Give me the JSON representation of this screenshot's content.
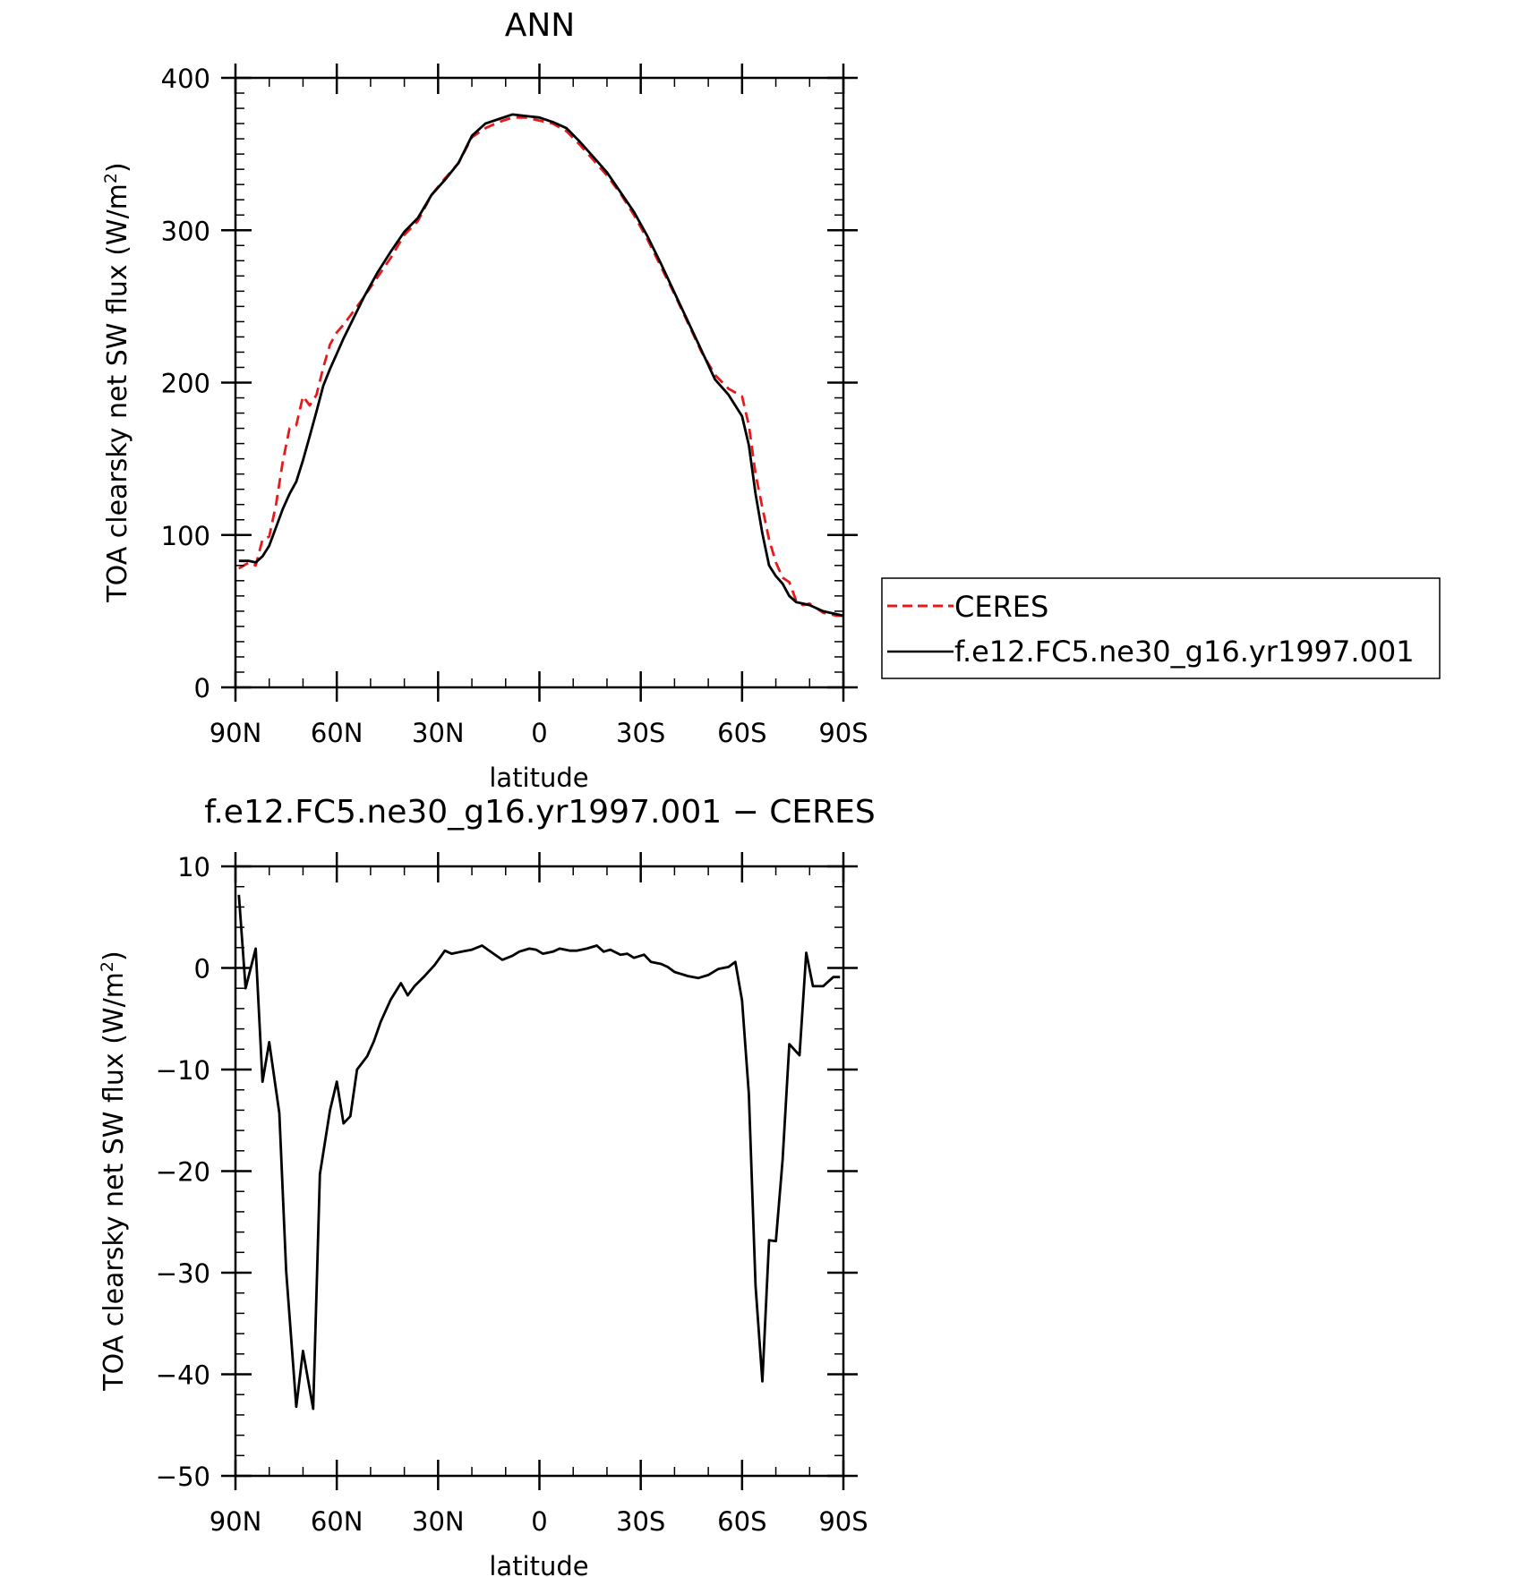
{
  "chart_data": [
    {
      "type": "line",
      "title": "ANN",
      "xlabel": "latitude",
      "ylabel": "TOA clearsky net SW flux (W/m²)",
      "ylabel_base": "TOA clearsky net SW flux (W/m",
      "ylabel_sup": "2",
      "ylabel_close": ")",
      "xlim": [
        90,
        -90
      ],
      "ylim": [
        0,
        400
      ],
      "xticks": [
        90,
        60,
        30,
        0,
        -30,
        -60,
        -90
      ],
      "xtick_labels": [
        "90N",
        "60N",
        "30N",
        "0",
        "30S",
        "60S",
        "90S"
      ],
      "yticks": [
        0,
        100,
        200,
        300,
        400
      ],
      "ytick_labels": [
        "0",
        "100",
        "200",
        "300",
        "400"
      ],
      "legend_position": "right",
      "series": [
        {
          "name": "CERES",
          "color": "#e8191b",
          "dash": "dashed",
          "x": [
            89,
            86,
            84,
            82,
            80,
            78,
            76,
            74,
            72,
            70,
            68,
            66,
            64,
            62,
            60,
            58,
            56,
            54,
            52,
            48,
            44,
            40,
            36,
            32,
            28,
            24,
            20,
            16,
            12,
            8,
            4,
            0,
            -4,
            -8,
            -12,
            -16,
            -20,
            -24,
            -28,
            -32,
            -36,
            -40,
            -44,
            -48,
            -52,
            -56,
            -60,
            -62,
            -64,
            -66,
            -68,
            -70,
            -72,
            -74,
            -76,
            -78,
            -80,
            -82,
            -84,
            -86,
            -88,
            -90
          ],
          "y": [
            78,
            82,
            80,
            97,
            99,
            120,
            148,
            170,
            172,
            191,
            185,
            192,
            210,
            225,
            233,
            238,
            244,
            250,
            256,
            269,
            282,
            297,
            306,
            323,
            334,
            344,
            361,
            367,
            371,
            374,
            374,
            372,
            370,
            365,
            356,
            346,
            336,
            324,
            310,
            294,
            276,
            258,
            239,
            220,
            205,
            196,
            191,
            172,
            140,
            118,
            97,
            82,
            72,
            69,
            57,
            54,
            55,
            52,
            49,
            48,
            47,
            47
          ]
        },
        {
          "name": "f.e12.FC5.ne30_g16.yr1997.001",
          "color": "#000000",
          "dash": "solid",
          "x": [
            89,
            86,
            84,
            82,
            80,
            78,
            76,
            74,
            72,
            70,
            68,
            66,
            64,
            62,
            60,
            58,
            56,
            54,
            52,
            48,
            44,
            40,
            36,
            32,
            28,
            24,
            20,
            16,
            12,
            8,
            4,
            0,
            -4,
            -8,
            -12,
            -16,
            -20,
            -24,
            -28,
            -32,
            -36,
            -40,
            -44,
            -48,
            -52,
            -56,
            -60,
            -62,
            -64,
            -66,
            -68,
            -70,
            -72,
            -74,
            -76,
            -78,
            -80,
            -82,
            -84,
            -86,
            -88,
            -90
          ],
          "y": [
            83,
            83,
            82,
            86,
            93,
            105,
            117,
            127,
            135,
            149,
            165,
            181,
            198,
            209,
            219,
            229,
            238,
            247,
            256,
            272,
            286,
            299,
            308,
            323,
            333,
            344,
            362,
            370,
            373,
            376,
            375,
            374,
            371,
            367,
            358,
            348,
            338,
            325,
            312,
            296,
            278,
            259,
            240,
            221,
            202,
            192,
            178,
            159,
            127,
            101,
            80,
            73,
            68,
            60,
            56,
            55,
            54,
            52,
            50,
            49,
            48,
            47
          ]
        }
      ]
    },
    {
      "type": "line",
      "title": "f.e12.FC5.ne30_g16.yr1997.001 − CERES",
      "xlabel": "latitude",
      "ylabel": "TOA clearsky net SW flux (W/m²)",
      "ylabel_base": "TOA clearsky net SW flux (W/m",
      "ylabel_sup": "2",
      "ylabel_close": ")",
      "xlim": [
        90,
        -90
      ],
      "ylim": [
        -50,
        10
      ],
      "xticks": [
        90,
        60,
        30,
        0,
        -30,
        -60,
        -90
      ],
      "xtick_labels": [
        "90N",
        "60N",
        "30N",
        "0",
        "30S",
        "60S",
        "90S"
      ],
      "yticks": [
        10,
        0,
        -10,
        -20,
        -30,
        -40,
        -50
      ],
      "ytick_labels": [
        "10",
        "0",
        "−10",
        "−20",
        "−30",
        "−40",
        "−50"
      ],
      "series": [
        {
          "color": "#000000",
          "dash": "solid",
          "x": [
            89,
            87,
            84,
            82,
            80,
            77,
            75,
            72,
            70,
            67,
            65,
            62,
            60,
            58,
            56,
            54,
            51,
            49,
            47,
            44,
            41,
            39,
            37,
            34,
            31,
            28,
            26,
            23,
            20,
            17,
            14,
            11,
            8,
            6,
            3,
            1,
            -1,
            -4,
            -6,
            -9,
            -11,
            -14,
            -17,
            -19,
            -21,
            -24,
            -26,
            -28,
            -31,
            -33,
            -36,
            -38,
            -40,
            -44,
            -47,
            -50,
            -53,
            -56,
            -58,
            -60,
            -62,
            -64,
            -66,
            -68,
            -70,
            -72,
            -74,
            -77,
            -79,
            -81,
            -84,
            -87,
            -89
          ],
          "y": [
            7.2,
            -2,
            1.9,
            -11.2,
            -7.3,
            -14.3,
            -29.8,
            -43.2,
            -37.7,
            -43.4,
            -20.3,
            -14,
            -11.2,
            -15.3,
            -14.6,
            -10,
            -8.7,
            -7.2,
            -5.3,
            -3.1,
            -1.5,
            -2.7,
            -1.8,
            -0.8,
            0.3,
            1.7,
            1.4,
            1.6,
            1.8,
            2.2,
            1.5,
            0.8,
            1.2,
            1.6,
            1.9,
            1.8,
            1.4,
            1.6,
            1.9,
            1.7,
            1.7,
            1.9,
            2.2,
            1.6,
            1.8,
            1.3,
            1.4,
            1.0,
            1.3,
            0.6,
            0.4,
            0.1,
            -0.4,
            -0.8,
            -1.0,
            -0.7,
            -0.1,
            0.1,
            0.6,
            -3.2,
            -12.4,
            -31.3,
            -40.7,
            -26.8,
            -26.9,
            -18.9,
            -7.5,
            -8.6,
            1.5,
            -1.8,
            -1.8,
            -0.9,
            -0.9
          ]
        }
      ]
    }
  ]
}
